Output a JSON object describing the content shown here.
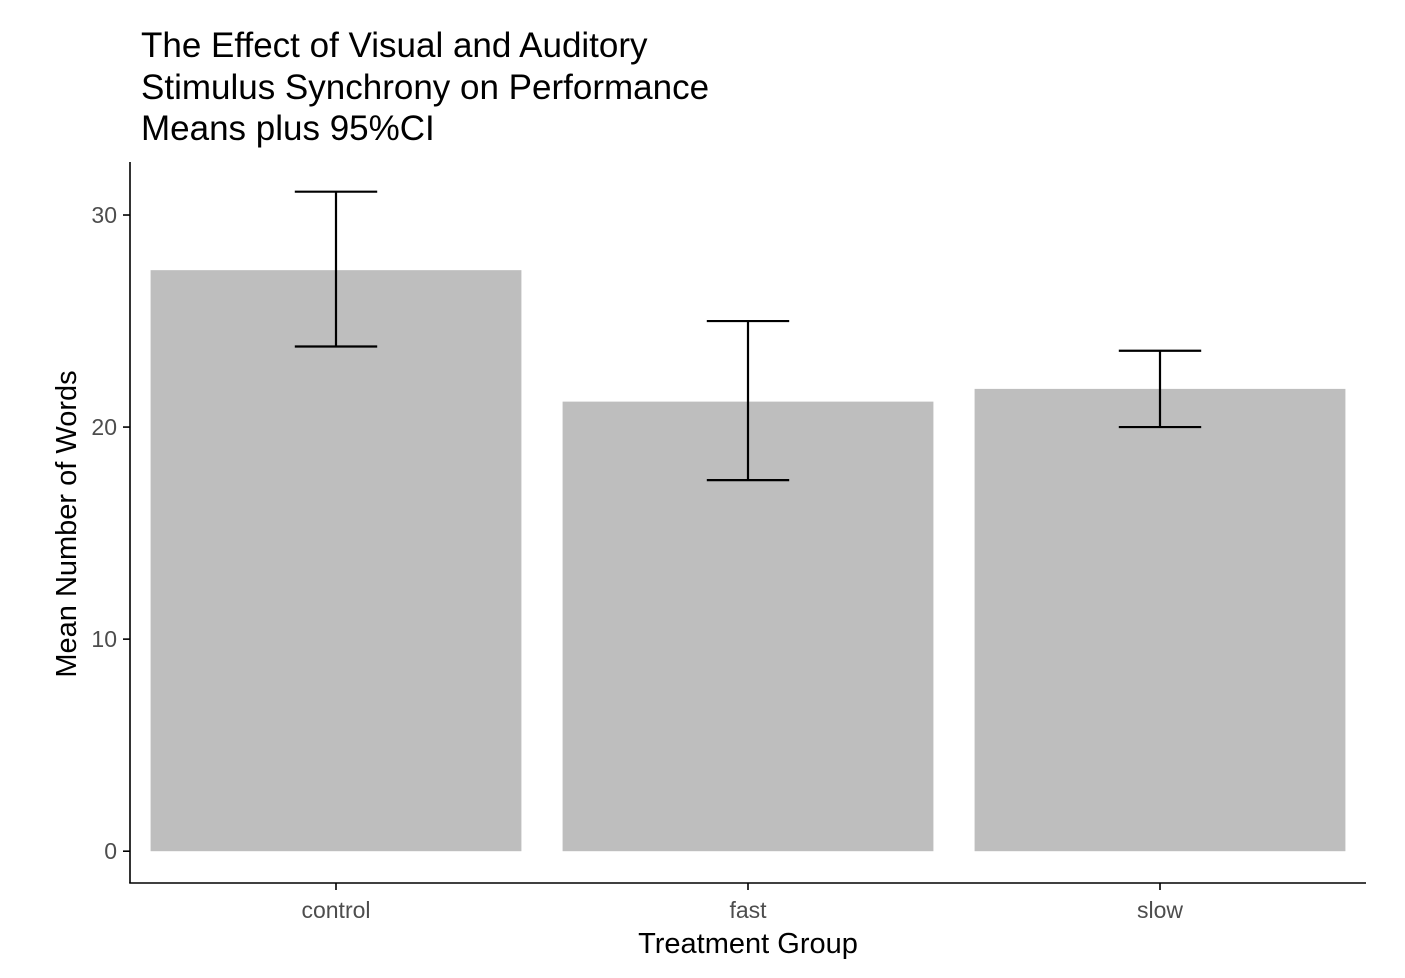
{
  "chart_data": {
    "type": "bar",
    "title_lines": [
      "The Effect of Visual and Auditory",
      "Stimulus Synchrony on Performance",
      "Means plus 95%CI"
    ],
    "xlabel": "Treatment Group",
    "ylabel": "Mean Number of Words",
    "categories": [
      "control",
      "fast",
      "slow"
    ],
    "values": [
      27.4,
      21.2,
      21.8
    ],
    "ci_lower": [
      23.8,
      17.5,
      20.0
    ],
    "ci_upper": [
      31.1,
      25.0,
      23.6
    ],
    "ylim": [
      -1.5,
      32.5
    ],
    "yticks": [
      0,
      10,
      20,
      30
    ],
    "ytick_labels": [
      "0",
      "10",
      "20",
      "30"
    ],
    "grid": false,
    "legend": "none",
    "colors": {
      "bar": "#bebebe",
      "errorbar": "#000000",
      "axis": "#000000",
      "tick_text": "#4d4d4d"
    }
  }
}
